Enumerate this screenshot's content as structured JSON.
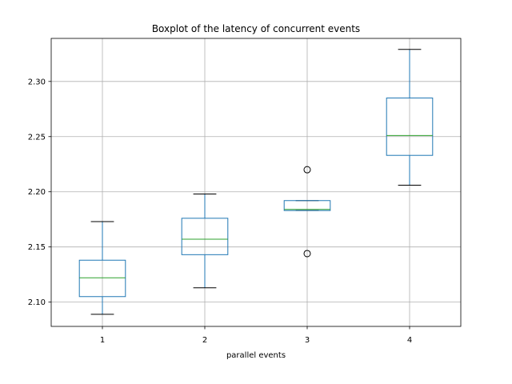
{
  "chart_data": {
    "type": "box",
    "title": "Boxplot of the latency of concurrent events",
    "xlabel": "parallel events",
    "ylabel": "",
    "categories": [
      "1",
      "2",
      "3",
      "4"
    ],
    "ylim": [
      2.078,
      2.339
    ],
    "yticks": [
      "2.10",
      "2.15",
      "2.20",
      "2.25",
      "2.30"
    ],
    "grid": true,
    "colors": {
      "box": "#1f77b4",
      "median": "#2ca02c",
      "whisker_cap": "#000000",
      "grid": "#b0b0b0",
      "outlier": "#000000"
    },
    "boxes": [
      {
        "category": "1",
        "whisker_low": 2.089,
        "q1": 2.105,
        "median": 2.122,
        "q3": 2.138,
        "whisker_high": 2.173,
        "outliers": []
      },
      {
        "category": "2",
        "whisker_low": 2.113,
        "q1": 2.143,
        "median": 2.157,
        "q3": 2.176,
        "whisker_high": 2.198,
        "outliers": []
      },
      {
        "category": "3",
        "whisker_low": 2.183,
        "q1": 2.183,
        "median": 2.184,
        "q3": 2.192,
        "whisker_high": 2.192,
        "outliers": [
          2.22,
          2.144
        ]
      },
      {
        "category": "4",
        "whisker_low": 2.206,
        "q1": 2.233,
        "median": 2.251,
        "q3": 2.285,
        "whisker_high": 2.329,
        "outliers": []
      }
    ]
  }
}
